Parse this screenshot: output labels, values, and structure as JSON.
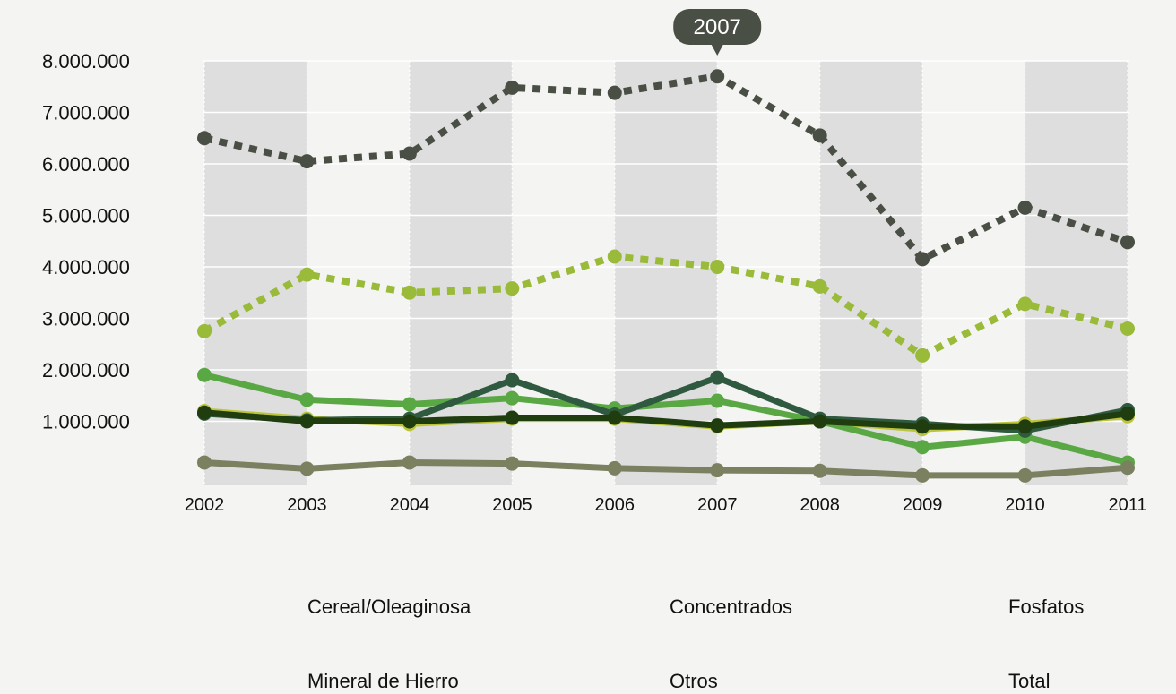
{
  "chart_data": {
    "type": "line",
    "x": [
      "2002",
      "2003",
      "2004",
      "2005",
      "2006",
      "2007",
      "2008",
      "2009",
      "2010",
      "2011"
    ],
    "y_ticks": [
      "1.000.000",
      "2.000.000",
      "3.000.000",
      "4.000.000",
      "5.000.000",
      "6.000.000",
      "7.000.000",
      "8.000.000"
    ],
    "ylim": [
      0,
      8000000
    ],
    "grid": true,
    "tooltip": {
      "label": "2007",
      "x": "2007"
    },
    "series": [
      {
        "name": "Cereal/Oleaginosa",
        "color": "#bcc43a",
        "dash": false,
        "values": [
          1200000,
          1050000,
          950000,
          1050000,
          1050000,
          900000,
          1000000,
          850000,
          950000,
          1100000
        ]
      },
      {
        "name": "Concentrados",
        "color": "#5aa844",
        "dash": false,
        "values": [
          1900000,
          1420000,
          1330000,
          1450000,
          1250000,
          1400000,
          1000000,
          500000,
          700000,
          200000
        ]
      },
      {
        "name": "Fosfatos",
        "color": "#2f5a40",
        "dash": false,
        "values": [
          1150000,
          1020000,
          1050000,
          1800000,
          1130000,
          1850000,
          1050000,
          950000,
          820000,
          1220000
        ]
      },
      {
        "name": "Mineral de Hierro",
        "color": "#1f3d0f",
        "dash": false,
        "values": [
          1170000,
          1000000,
          1000000,
          1070000,
          1070000,
          920000,
          1000000,
          900000,
          900000,
          1150000
        ]
      },
      {
        "name": "Otros",
        "color": "#7a8060",
        "dash": false,
        "values": [
          200000,
          80000,
          200000,
          180000,
          90000,
          50000,
          40000,
          -50000,
          -50000,
          100000
        ]
      },
      {
        "name": "Total",
        "color": "#4a4f45",
        "dash": true,
        "values": [
          6500000,
          6050000,
          6200000,
          7480000,
          7380000,
          7700000,
          6550000,
          4150000,
          5150000,
          4480000
        ]
      },
      {
        "name": "",
        "color": "#9aba3a",
        "dash": true,
        "values": [
          2750000,
          3850000,
          3500000,
          3580000,
          4200000,
          4000000,
          3620000,
          2280000,
          3280000,
          2800000
        ]
      }
    ],
    "legend": [
      "Cereal/Oleaginosa",
      "Concentrados",
      "Fosfatos",
      "Mineral de Hierro",
      "Otros",
      "Total"
    ]
  }
}
